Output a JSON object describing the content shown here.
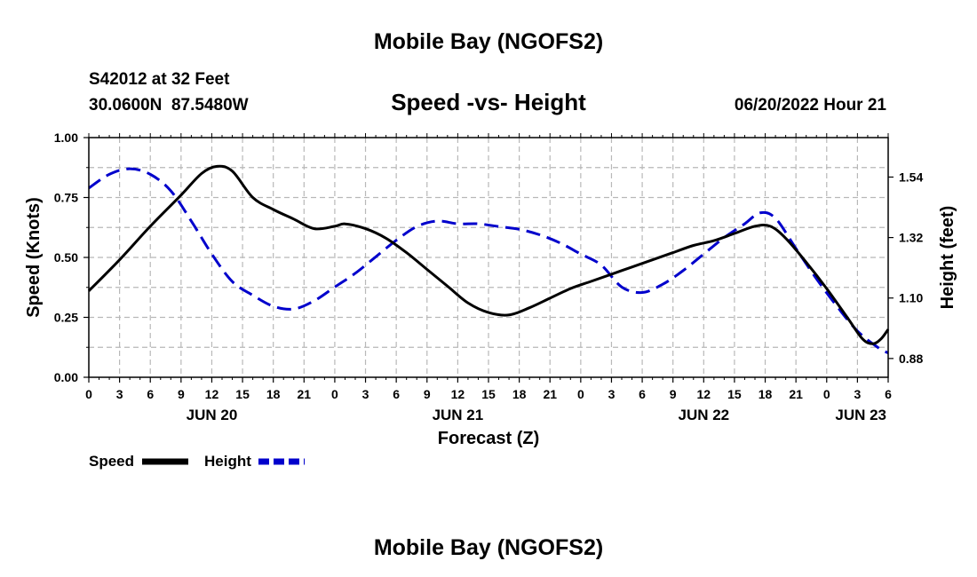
{
  "header": {
    "title": "Mobile Bay (NGOFS2)",
    "station_line": "S42012 at 32 Feet",
    "coords_line": "30.0600N  87.5480W",
    "subtitle": "Speed -vs- Height",
    "date_line": "06/20/2022 Hour 21"
  },
  "footer": {
    "title": "Mobile Bay (NGOFS2)"
  },
  "chart_data": {
    "type": "line",
    "title": "Speed -vs- Height",
    "xlabel": "Forecast (Z)",
    "ylabel_left": "Speed (Knots)",
    "ylabel_right": "Height (feet)",
    "x_unit": "hours since JUN 20 00Z",
    "xlim": [
      0,
      78
    ],
    "ylim_left": [
      0,
      1.0
    ],
    "ylim_right": [
      0.8117,
      1.6836
    ],
    "x_tick_labels": [
      "0",
      "3",
      "6",
      "9",
      "12",
      "15",
      "18",
      "21",
      "0",
      "3",
      "6",
      "9",
      "12",
      "15",
      "18",
      "21",
      "0",
      "3",
      "6",
      "9",
      "12",
      "15",
      "18",
      "21",
      "0",
      "3",
      "6"
    ],
    "day_labels": [
      {
        "label": "JUN 20",
        "hour": 12
      },
      {
        "label": "JUN 21",
        "hour": 36
      },
      {
        "label": "JUN 22",
        "hour": 60
      },
      {
        "label": "JUN 23",
        "hour": 78
      }
    ],
    "y_left_ticks": [
      "0.00",
      "0.25",
      "0.50",
      "0.75",
      "1.00"
    ],
    "y_right_ticks": [
      "0.88",
      "1.10",
      "1.32",
      "1.54"
    ],
    "grid": true,
    "legend_position": "bottom-left",
    "series": [
      {
        "name": "Speed",
        "axis": "left",
        "color": "#000000",
        "style": "solid",
        "points": [
          [
            0,
            0.36
          ],
          [
            3,
            0.49
          ],
          [
            6,
            0.63
          ],
          [
            9,
            0.76
          ],
          [
            11,
            0.85
          ],
          [
            12.5,
            0.88
          ],
          [
            14,
            0.86
          ],
          [
            16,
            0.75
          ],
          [
            18,
            0.7
          ],
          [
            20,
            0.66
          ],
          [
            22,
            0.62
          ],
          [
            24,
            0.63
          ],
          [
            25,
            0.64
          ],
          [
            27,
            0.62
          ],
          [
            29,
            0.58
          ],
          [
            31,
            0.52
          ],
          [
            33,
            0.45
          ],
          [
            35,
            0.38
          ],
          [
            37,
            0.31
          ],
          [
            39,
            0.27
          ],
          [
            41,
            0.26
          ],
          [
            43,
            0.29
          ],
          [
            45,
            0.33
          ],
          [
            47,
            0.37
          ],
          [
            49,
            0.4
          ],
          [
            51,
            0.43
          ],
          [
            53,
            0.46
          ],
          [
            55,
            0.49
          ],
          [
            57,
            0.52
          ],
          [
            59,
            0.55
          ],
          [
            61,
            0.57
          ],
          [
            63,
            0.6
          ],
          [
            65,
            0.63
          ],
          [
            66.5,
            0.63
          ],
          [
            68,
            0.58
          ],
          [
            70,
            0.48
          ],
          [
            72,
            0.37
          ],
          [
            74,
            0.25
          ],
          [
            75.5,
            0.16
          ],
          [
            76.5,
            0.14
          ],
          [
            77.3,
            0.16
          ],
          [
            78,
            0.2
          ]
        ]
      },
      {
        "name": "Height",
        "axis": "right",
        "color": "#0000cc",
        "style": "dashed",
        "points": [
          [
            0,
            1.5
          ],
          [
            2,
            1.55
          ],
          [
            4,
            1.57
          ],
          [
            6,
            1.55
          ],
          [
            8,
            1.49
          ],
          [
            10,
            1.38
          ],
          [
            12,
            1.26
          ],
          [
            14,
            1.16
          ],
          [
            16,
            1.11
          ],
          [
            18,
            1.07
          ],
          [
            20,
            1.06
          ],
          [
            22,
            1.09
          ],
          [
            24,
            1.14
          ],
          [
            26,
            1.19
          ],
          [
            28,
            1.25
          ],
          [
            30,
            1.31
          ],
          [
            32,
            1.36
          ],
          [
            34,
            1.38
          ],
          [
            36,
            1.37
          ],
          [
            38,
            1.37
          ],
          [
            40,
            1.36
          ],
          [
            42,
            1.35
          ],
          [
            44,
            1.33
          ],
          [
            46,
            1.3
          ],
          [
            48,
            1.26
          ],
          [
            50,
            1.22
          ],
          [
            52,
            1.14
          ],
          [
            54,
            1.12
          ],
          [
            56,
            1.15
          ],
          [
            58,
            1.2
          ],
          [
            60,
            1.26
          ],
          [
            62,
            1.32
          ],
          [
            64,
            1.37
          ],
          [
            65.5,
            1.41
          ],
          [
            67,
            1.39
          ],
          [
            69,
            1.28
          ],
          [
            71,
            1.17
          ],
          [
            73,
            1.07
          ],
          [
            75,
            0.98
          ],
          [
            77,
            0.92
          ],
          [
            78,
            0.9
          ]
        ]
      }
    ]
  },
  "legend": {
    "speed_label": "Speed",
    "height_label": "Height"
  }
}
